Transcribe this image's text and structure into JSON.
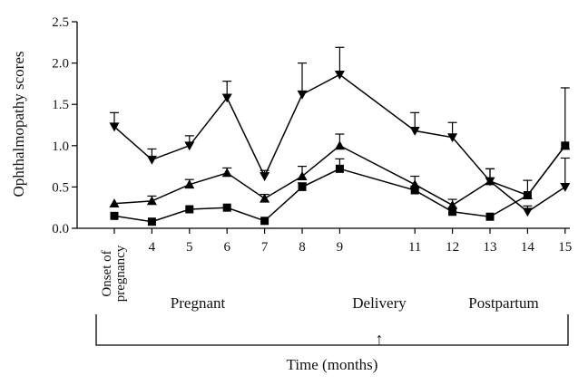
{
  "chart_data": {
    "type": "line",
    "ylabel": "Ophthalmopathy scores",
    "xlabel": "Time (months)",
    "ylim": [
      0,
      2.5
    ],
    "y_ticks": [
      "0.0",
      "0.5",
      "1.0",
      "1.5",
      "2.0",
      "2.5"
    ],
    "y_tick_values": [
      0,
      0.5,
      1.0,
      1.5,
      2.0,
      2.5
    ],
    "x_positions": [
      3,
      4,
      5,
      6,
      7,
      8,
      9,
      11,
      12,
      13,
      14,
      15
    ],
    "x_tick_labels": [
      "",
      "4",
      "5",
      "6",
      "7",
      "8",
      "9",
      "11",
      "12",
      "13",
      "14",
      "15"
    ],
    "onset_label": [
      "Onset of",
      "pregnancy"
    ],
    "phases": [
      "Pregnant",
      "Delivery",
      "Postpartum"
    ],
    "arrow_glyph": "↑",
    "series": [
      {
        "marker": "triangle-down",
        "values": [
          1.23,
          0.83,
          1.0,
          1.58,
          0.63,
          1.62,
          1.86,
          1.18,
          1.1,
          0.57,
          0.2,
          0.5
        ],
        "errors": [
          0.17,
          0.13,
          0.12,
          0.2,
          0.07,
          0.38,
          0.33,
          0.22,
          0.18,
          0.15,
          0.07,
          0.35
        ]
      },
      {
        "marker": "triangle-up",
        "values": [
          0.3,
          0.33,
          0.53,
          0.67,
          0.36,
          0.63,
          1.0,
          0.53,
          0.28,
          0.57,
          0.4,
          1.0
        ],
        "errors": [
          0.0,
          0.06,
          0.06,
          0.06,
          0.05,
          0.12,
          0.14,
          0.1,
          0.07,
          0.15,
          0.18,
          0.7
        ]
      },
      {
        "marker": "square",
        "values": [
          0.15,
          0.08,
          0.23,
          0.25,
          0.09,
          0.5,
          0.72,
          0.46,
          0.2,
          0.14,
          0.4,
          1.0
        ],
        "errors": [
          0.0,
          0.0,
          0.0,
          0.0,
          0.0,
          0.05,
          0.12,
          0.05,
          0.05,
          0.0,
          0.0,
          0.0
        ]
      }
    ]
  }
}
